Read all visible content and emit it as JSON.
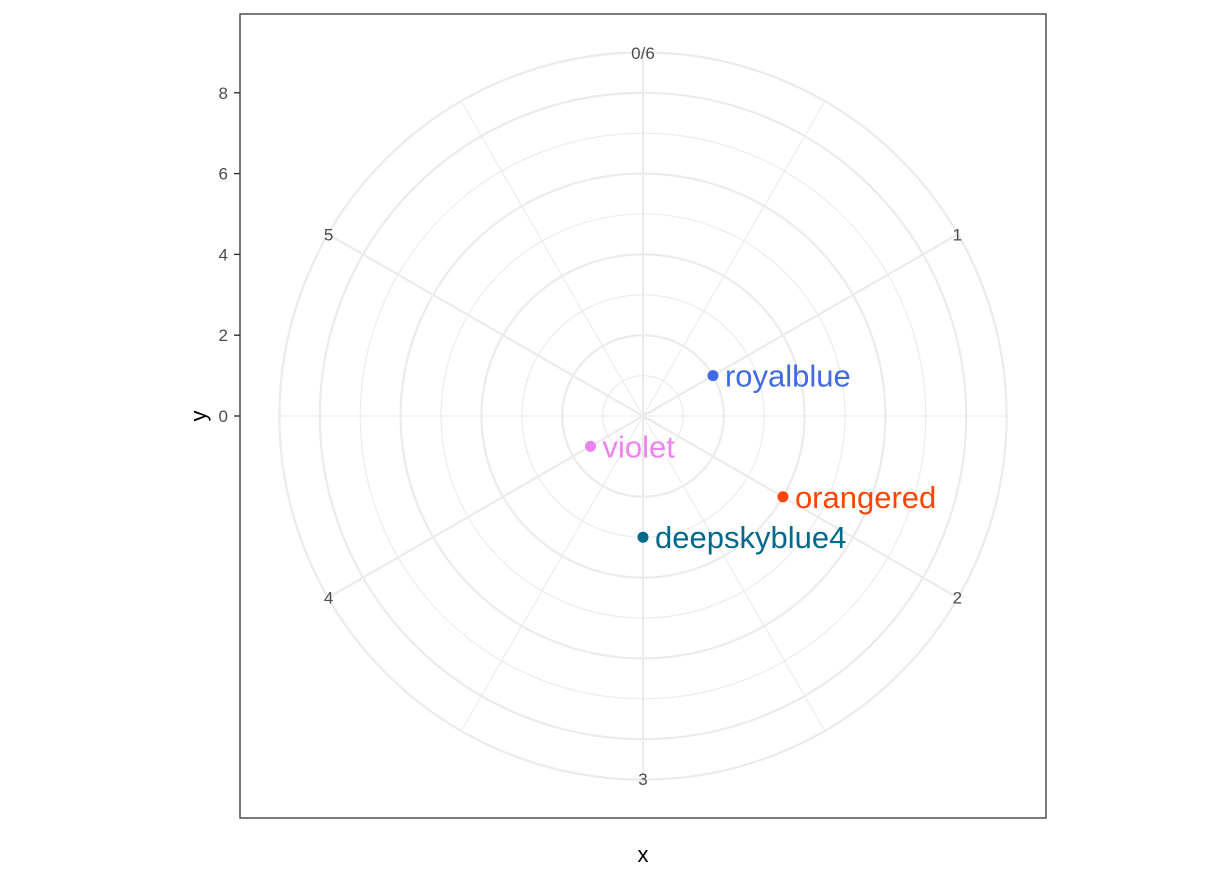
{
  "chart_data": {
    "type": "scatter",
    "coord": "polar",
    "xlabel": "x",
    "ylabel": "y",
    "x_range": [
      0,
      6
    ],
    "x_ticks": [
      {
        "value": 0,
        "label": "0/6"
      },
      {
        "value": 1,
        "label": "1"
      },
      {
        "value": 2,
        "label": "2"
      },
      {
        "value": 3,
        "label": "3"
      },
      {
        "value": 4,
        "label": "4"
      },
      {
        "value": 5,
        "label": "5"
      }
    ],
    "y_range": [
      0,
      9
    ],
    "y_ticks": [
      0,
      2,
      4,
      6,
      8
    ],
    "y_tick_labels": [
      "0",
      "2",
      "4",
      "6",
      "8"
    ],
    "grid": true,
    "points": [
      {
        "x": 1,
        "y": 2,
        "label": "royalblue",
        "color": "#4169e1"
      },
      {
        "x": 2,
        "y": 4,
        "label": "orangered",
        "color": "#ff4500"
      },
      {
        "x": 3,
        "y": 3,
        "label": "deepskyblue4",
        "color": "#00688b"
      },
      {
        "x": 4,
        "y": 1.5,
        "label": "violet",
        "color": "#ee82ee"
      }
    ]
  }
}
